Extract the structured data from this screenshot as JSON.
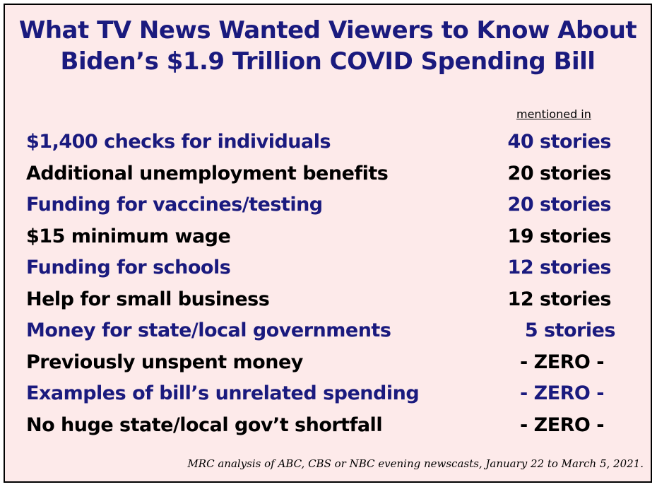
{
  "chart_data": {
    "type": "table",
    "title_lines": [
      "What TV News Wanted Viewers to Know About",
      "Biden’s $1.9 Trillion COVID Spending Bill"
    ],
    "column_header": "mentioned in",
    "rows": [
      {
        "label": "$1,400 checks for individuals",
        "value_text": "40 stories",
        "value": 40,
        "color": "blue"
      },
      {
        "label": "Additional unemployment benefits",
        "value_text": "20 stories",
        "value": 20,
        "color": "black"
      },
      {
        "label": "Funding for vaccines/testing",
        "value_text": "20 stories",
        "value": 20,
        "color": "blue"
      },
      {
        "label": "$15 minimum wage",
        "value_text": "19 stories",
        "value": 19,
        "color": "black"
      },
      {
        "label": "Funding for schools",
        "value_text": "12 stories",
        "value": 12,
        "color": "blue"
      },
      {
        "label": "Help for small business",
        "value_text": "12 stories",
        "value": 12,
        "color": "black"
      },
      {
        "label": "Money for state/local governments",
        "value_text": "5 stories",
        "value": 5,
        "color": "blue"
      },
      {
        "label": "Previously unspent money",
        "value_text": "- ZERO -",
        "value": 0,
        "color": "black"
      },
      {
        "label": "Examples of bill’s unrelated spending",
        "value_text": "- ZERO -",
        "value": 0,
        "color": "blue"
      },
      {
        "label": "No huge state/local gov’t shortfall",
        "value_text": "- ZERO -",
        "value": 0,
        "color": "black"
      }
    ],
    "footnote": "MRC analysis of ABC, CBS or NBC evening newscasts, January 22 to March 5, 2021.",
    "colors": {
      "blue": "#1a1a7e",
      "black": "#000000",
      "background": "#fdeaea"
    }
  }
}
